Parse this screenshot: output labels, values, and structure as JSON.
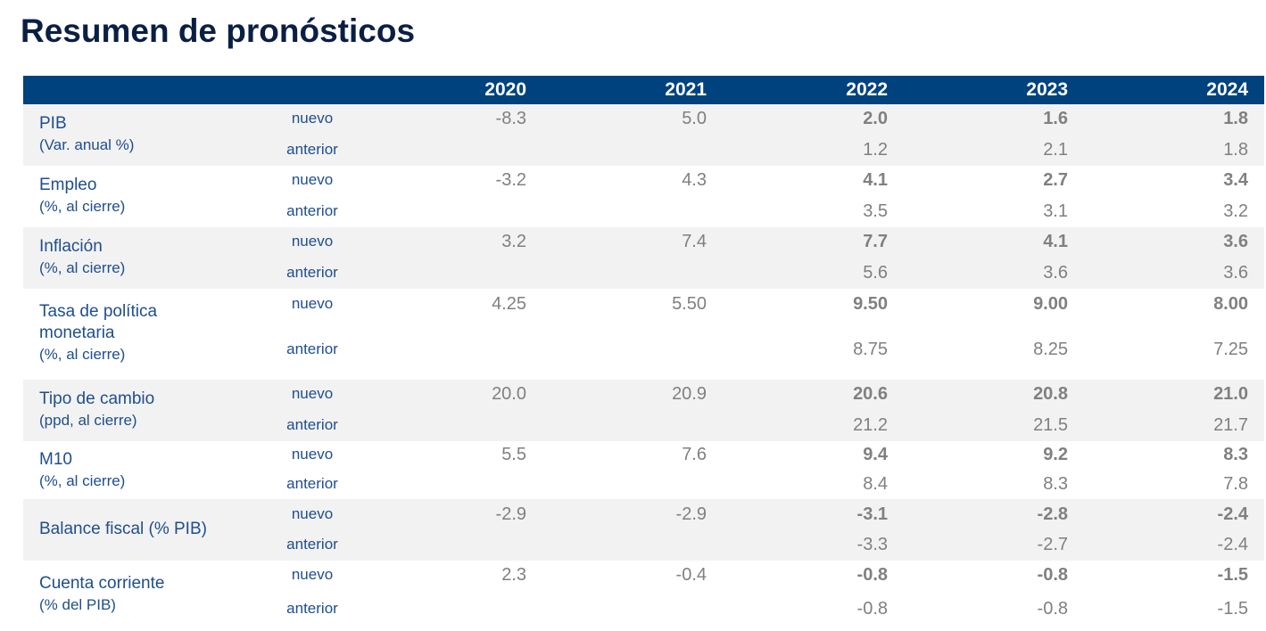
{
  "title": "Resumen de pronósticos",
  "years": [
    "2020",
    "2021",
    "2022",
    "2023",
    "2024"
  ],
  "labels": {
    "nuevo": "nuevo",
    "anterior": "anterior"
  },
  "rows": [
    {
      "name": "PIB",
      "unit": "(Var. anual %)",
      "nuevo": [
        "-8.3",
        "5.0",
        "2.0",
        "1.6",
        "1.8"
      ],
      "anterior": [
        "",
        "",
        "1.2",
        "2.1",
        "1.8"
      ]
    },
    {
      "name": "Empleo",
      "unit": "(%, al cierre)",
      "nuevo": [
        "-3.2",
        "4.3",
        "4.1",
        "2.7",
        "3.4"
      ],
      "anterior": [
        "",
        "",
        "3.5",
        "3.1",
        "3.2"
      ]
    },
    {
      "name": "Inflación",
      "unit": "(%, al cierre)",
      "nuevo": [
        "3.2",
        "7.4",
        "7.7",
        "4.1",
        "3.6"
      ],
      "anterior": [
        "",
        "",
        "5.6",
        "3.6",
        "3.6"
      ]
    },
    {
      "name": "Tasa de política",
      "name2": "monetaria",
      "unit": "(%, al cierre)",
      "nuevo": [
        "4.25",
        "5.50",
        "9.50",
        "9.00",
        "8.00"
      ],
      "anterior": [
        "",
        "",
        "8.75",
        "8.25",
        "7.25"
      ]
    },
    {
      "name": "Tipo de cambio",
      "unit": "(ppd, al cierre)",
      "nuevo": [
        "20.0",
        "20.9",
        "20.6",
        "20.8",
        "21.0"
      ],
      "anterior": [
        "",
        "",
        "21.2",
        "21.5",
        "21.7"
      ]
    },
    {
      "name": "M10",
      "unit": "(%, al cierre)",
      "nuevo": [
        "5.5",
        "7.6",
        "9.4",
        "9.2",
        "8.3"
      ],
      "anterior": [
        "",
        "",
        "8.4",
        "8.3",
        "7.8"
      ]
    },
    {
      "name": "Balance fiscal (% PIB)",
      "unit": "",
      "nuevo": [
        "-2.9",
        "-2.9",
        "-3.1",
        "-2.8",
        "-2.4"
      ],
      "anterior": [
        "",
        "",
        "-3.3",
        "-2.7",
        "-2.4"
      ]
    },
    {
      "name": "Cuenta corriente",
      "unit": "(% del PIB)",
      "nuevo": [
        "2.3",
        "-0.4",
        "-0.8",
        "-0.8",
        "-1.5"
      ],
      "anterior": [
        "",
        "",
        "-0.8",
        "-0.8",
        "-1.5"
      ]
    }
  ]
}
